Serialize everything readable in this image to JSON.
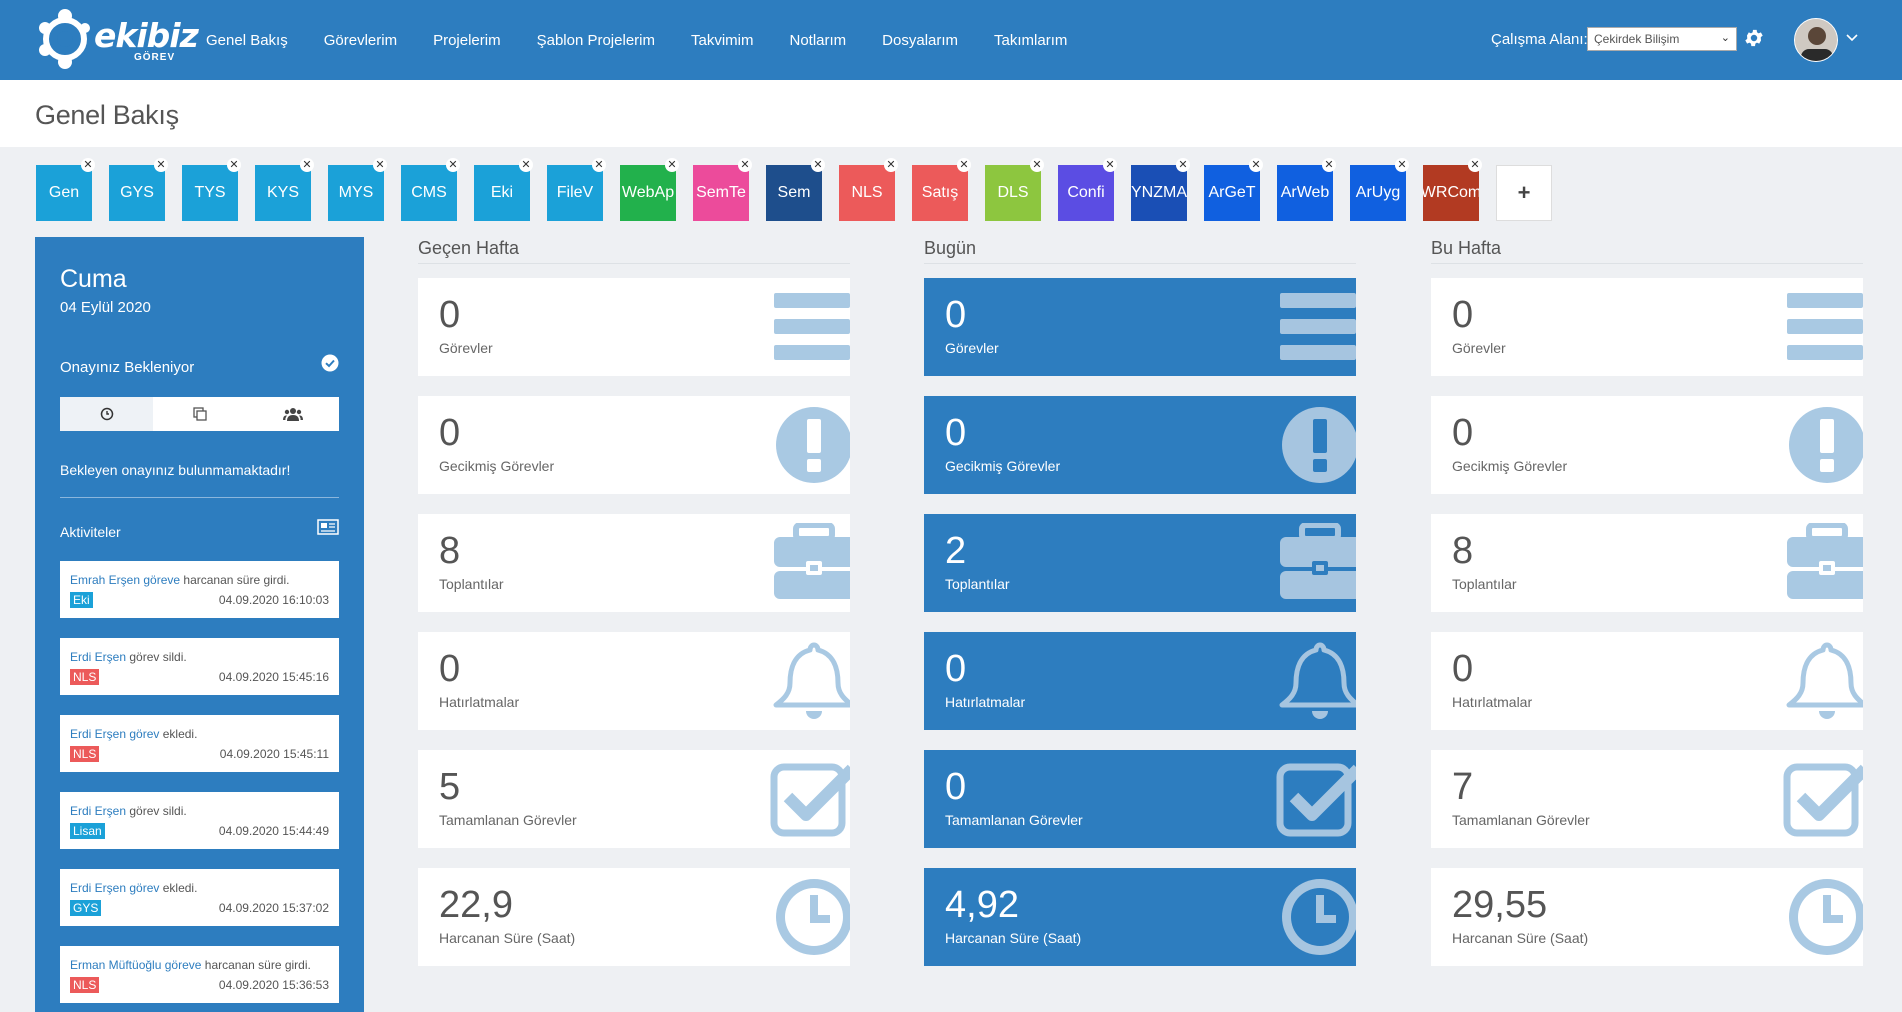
{
  "header": {
    "logo_text": "ekibiz",
    "logo_sub": "GÖREV",
    "nav": [
      "Genel Bakış",
      "Görevlerim",
      "Projelerim",
      "Şablon Projelerim",
      "Takvimim",
      "Notlarım",
      "Dosyalarım",
      "Takımlarım"
    ],
    "workspace_label": "Çalışma Alanı:",
    "workspace_value": "Çekirdek Bilişim"
  },
  "page_title": "Genel Bakış",
  "projects": [
    {
      "label": "Gen",
      "color": "#1ba1d8"
    },
    {
      "label": "GYS",
      "color": "#1ba1d8"
    },
    {
      "label": "TYS",
      "color": "#1ba1d8"
    },
    {
      "label": "KYS",
      "color": "#1ba1d8"
    },
    {
      "label": "MYS",
      "color": "#1ba1d8"
    },
    {
      "label": "CMS",
      "color": "#1ba1d8"
    },
    {
      "label": "Eki",
      "color": "#1ba1d8"
    },
    {
      "label": "FileV",
      "color": "#1ba1d8"
    },
    {
      "label": "WebAp",
      "color": "#22b14c"
    },
    {
      "label": "SemTe",
      "color": "#ec4b9b"
    },
    {
      "label": "Sem",
      "color": "#1e4e8c"
    },
    {
      "label": "NLS",
      "color": "#ec5a5a"
    },
    {
      "label": "Satış",
      "color": "#ec5a5a"
    },
    {
      "label": "DLS",
      "color": "#8dc63f"
    },
    {
      "label": "Confi",
      "color": "#5b4de3"
    },
    {
      "label": "YNZMA",
      "color": "#1a4fb5"
    },
    {
      "label": "ArGeT",
      "color": "#1060e0"
    },
    {
      "label": "ArWeb",
      "color": "#1060e0"
    },
    {
      "label": "ArUyg",
      "color": "#1060e0"
    },
    {
      "label": "WRCom",
      "color": "#b23a22"
    }
  ],
  "add_project_label": "+",
  "sidebar": {
    "day": "Cuma",
    "date": "04 Eylül 2020",
    "pending_title": "Onayınız Bekleniyor",
    "pending_empty": "Bekleyen onayınız bulunmamaktadır!",
    "activities_title": "Aktiviteler",
    "activities": [
      {
        "user": "Emrah Erşen",
        "link": "göreve",
        "action": " harcanan süre girdi.",
        "badge": "Eki",
        "badge_color": "#1ba1d8",
        "time": "04.09.2020 16:10:03"
      },
      {
        "user": "Erdi Erşen",
        "link": "",
        "action": " görev sildi.",
        "badge": "NLS",
        "badge_color": "#ec5a5a",
        "time": "04.09.2020 15:45:16"
      },
      {
        "user": "Erdi Erşen",
        "link": "görev",
        "action": " ekledi.",
        "badge": "NLS",
        "badge_color": "#ec5a5a",
        "time": "04.09.2020 15:45:11"
      },
      {
        "user": "Erdi Erşen",
        "link": "",
        "action": " görev sildi.",
        "badge": "Lisan",
        "badge_color": "#1ba1d8",
        "time": "04.09.2020 15:44:49"
      },
      {
        "user": "Erdi Erşen",
        "link": "görev",
        "action": " ekledi.",
        "badge": "GYS",
        "badge_color": "#1ba1d8",
        "time": "04.09.2020 15:37:02"
      },
      {
        "user": "Erman Müftüoğlu",
        "link": "göreve",
        "action": " harcanan süre girdi.",
        "badge": "NLS",
        "badge_color": "#ec5a5a",
        "time": "04.09.2020 15:36:53"
      }
    ]
  },
  "columns": [
    {
      "title": "Geçen Hafta",
      "style": "white",
      "stats": [
        {
          "value": "0",
          "label": "Görevler",
          "icon": "list-icon"
        },
        {
          "value": "0",
          "label": "Gecikmiş Görevler",
          "icon": "exclamation-icon"
        },
        {
          "value": "8",
          "label": "Toplantılar",
          "icon": "briefcase-icon"
        },
        {
          "value": "0",
          "label": "Hatırlatmalar",
          "icon": "bell-icon"
        },
        {
          "value": "5",
          "label": "Tamamlanan Görevler",
          "icon": "checkbox-icon"
        },
        {
          "value": "22,9",
          "label": "Harcanan Süre (Saat)",
          "icon": "clock-icon"
        }
      ]
    },
    {
      "title": "Bugün",
      "style": "blue",
      "stats": [
        {
          "value": "0",
          "label": "Görevler",
          "icon": "list-icon"
        },
        {
          "value": "0",
          "label": "Gecikmiş Görevler",
          "icon": "exclamation-icon"
        },
        {
          "value": "2",
          "label": "Toplantılar",
          "icon": "briefcase-icon"
        },
        {
          "value": "0",
          "label": "Hatırlatmalar",
          "icon": "bell-icon"
        },
        {
          "value": "0",
          "label": "Tamamlanan Görevler",
          "icon": "checkbox-icon"
        },
        {
          "value": "4,92",
          "label": "Harcanan Süre (Saat)",
          "icon": "clock-icon"
        }
      ]
    },
    {
      "title": "Bu Hafta",
      "style": "white",
      "stats": [
        {
          "value": "0",
          "label": "Görevler",
          "icon": "list-icon"
        },
        {
          "value": "0",
          "label": "Gecikmiş Görevler",
          "icon": "exclamation-icon"
        },
        {
          "value": "8",
          "label": "Toplantılar",
          "icon": "briefcase-icon"
        },
        {
          "value": "0",
          "label": "Hatırlatmalar",
          "icon": "bell-icon"
        },
        {
          "value": "7",
          "label": "Tamamlanan Görevler",
          "icon": "checkbox-icon"
        },
        {
          "value": "29,55",
          "label": "Harcanan Süre (Saat)",
          "icon": "clock-icon"
        }
      ]
    }
  ],
  "colors": {
    "primary": "#2d7dbf",
    "icon_light": "#a9c9e3",
    "icon_dark": "#a9c9e3"
  }
}
